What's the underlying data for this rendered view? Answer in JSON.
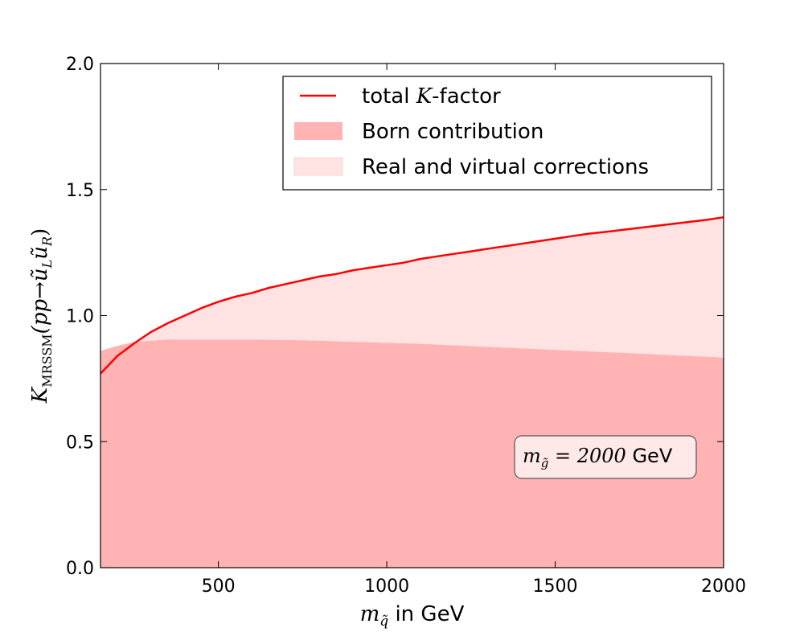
{
  "chart_data": {
    "type": "area",
    "xlabel": {
      "math": "m",
      "sub": "q̃",
      "text": " in GeV"
    },
    "ylabel": {
      "math": "K",
      "sub": "MRSSM",
      "text": "(pp→ũ",
      "sub2": "L",
      "mid": "ũ",
      "sub3": "R",
      "end": ")"
    },
    "xlim": [
      150,
      2000
    ],
    "ylim": [
      0.0,
      2.0
    ],
    "xticks": [
      500,
      1000,
      1500,
      2000
    ],
    "xtick_labels": [
      "500",
      "1000",
      "1500",
      "2000"
    ],
    "yticks": [
      0.0,
      0.5,
      1.0,
      1.5,
      2.0
    ],
    "ytick_labels": [
      "0.0",
      "0.5",
      "1.0",
      "1.5",
      "2.0"
    ],
    "legend_placement": "top-right",
    "legend": [
      {
        "kind": "line",
        "label_pre": "total ",
        "label_math": "K",
        "label_post": "-factor",
        "color": "#ff0000"
      },
      {
        "kind": "patch",
        "label": "Born contribution",
        "color": "#ffb3b3"
      },
      {
        "kind": "patch",
        "label": "Real and virtual corrections",
        "color": "#ffe3e3"
      }
    ],
    "annotation": {
      "math_pre": "m",
      "math_sub": "g̃",
      "math_eq": " = 2000",
      "text": " GeV"
    },
    "x": [
      150,
      200,
      250,
      300,
      350,
      400,
      450,
      500,
      550,
      600,
      650,
      700,
      750,
      800,
      850,
      900,
      950,
      1000,
      1050,
      1100,
      1150,
      1200,
      1250,
      1300,
      1350,
      1400,
      1450,
      1500,
      1550,
      1600,
      1650,
      1700,
      1750,
      1800,
      1850,
      1900,
      1950,
      2000
    ],
    "series": [
      {
        "name": "Born contribution",
        "values": [
          0.86,
          0.88,
          0.895,
          0.9,
          0.905,
          0.905,
          0.905,
          0.905,
          0.905,
          0.905,
          0.904,
          0.903,
          0.902,
          0.9,
          0.898,
          0.896,
          0.894,
          0.892,
          0.89,
          0.888,
          0.885,
          0.882,
          0.879,
          0.876,
          0.873,
          0.87,
          0.867,
          0.864,
          0.861,
          0.858,
          0.855,
          0.852,
          0.849,
          0.846,
          0.843,
          0.84,
          0.837,
          0.833
        ]
      },
      {
        "name": "total K-factor",
        "values": [
          0.77,
          0.84,
          0.89,
          0.935,
          0.97,
          1.0,
          1.03,
          1.055,
          1.075,
          1.09,
          1.11,
          1.125,
          1.14,
          1.155,
          1.165,
          1.18,
          1.19,
          1.2,
          1.21,
          1.225,
          1.235,
          1.245,
          1.255,
          1.265,
          1.275,
          1.285,
          1.295,
          1.305,
          1.315,
          1.325,
          1.332,
          1.34,
          1.348,
          1.356,
          1.364,
          1.372,
          1.38,
          1.39
        ]
      }
    ],
    "colors": {
      "line": "#ff0000",
      "born": "#ffb3b3",
      "corrections": "#ffe3e3"
    }
  }
}
